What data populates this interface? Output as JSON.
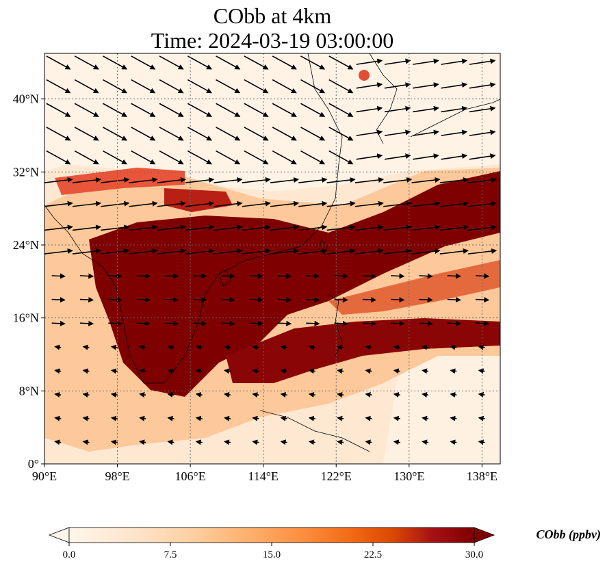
{
  "title": {
    "line1": "CObb at 4km",
    "line2": "Time: 2024-03-19 03:00:00"
  },
  "map": {
    "lon_range": [
      90,
      140
    ],
    "lat_range": [
      0,
      45
    ],
    "lon_ticks": [
      {
        "value": 90,
        "label": "90°E"
      },
      {
        "value": 98,
        "label": "98°E"
      },
      {
        "value": 106,
        "label": "106°E"
      },
      {
        "value": 114,
        "label": "114°E"
      },
      {
        "value": 122,
        "label": "122°E"
      },
      {
        "value": 130,
        "label": "130°E"
      },
      {
        "value": 138,
        "label": "138°E"
      }
    ],
    "lat_ticks": [
      {
        "value": 0,
        "label": "0°"
      },
      {
        "value": 8,
        "label": "8°N"
      },
      {
        "value": 16,
        "label": "16°N"
      },
      {
        "value": 24,
        "label": "24°N"
      },
      {
        "value": 32,
        "label": "32°N"
      },
      {
        "value": 40,
        "label": "40°N"
      }
    ],
    "gridlines": "dotted"
  },
  "colorbar": {
    "title": "CObb (ppbv)",
    "min": 0,
    "max": 30,
    "extend": "both",
    "tick_labels": [
      "0.0",
      "7.5",
      "15.0",
      "22.5",
      "30.0"
    ],
    "colors": [
      "#fff5eb",
      "#fee6ce",
      "#fdd0a2",
      "#fdae6b",
      "#fd8d3c",
      "#f16913",
      "#d94801",
      "#a50f15",
      "#7f0000"
    ]
  }
}
